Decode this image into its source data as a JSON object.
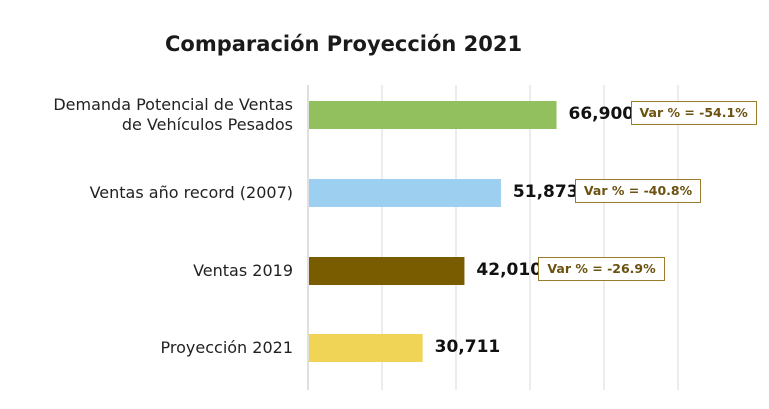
{
  "chart_data": {
    "type": "bar",
    "orientation": "horizontal",
    "title": "Comparación Proyección 2021",
    "categories": [
      [
        "Demanda Potencial de Ventas",
        "de Vehículos Pesados"
      ],
      [
        "Ventas año record (2007)"
      ],
      [
        "Ventas 2019"
      ],
      [
        "Proyección 2021"
      ]
    ],
    "values": [
      66900,
      51873,
      42010,
      30711
    ],
    "value_labels": [
      "66,900",
      "51,873",
      "42,010",
      "30,711"
    ],
    "annotations": [
      "Var % = -54.1%",
      "Var % = -40.8%",
      "Var % = -26.9%",
      ""
    ],
    "colors": [
      "#92c05f",
      "#9ccff0",
      "#7a5c00",
      "#efd455"
    ],
    "xlim": [
      0,
      120000
    ],
    "grid": true,
    "legend": "none"
  }
}
